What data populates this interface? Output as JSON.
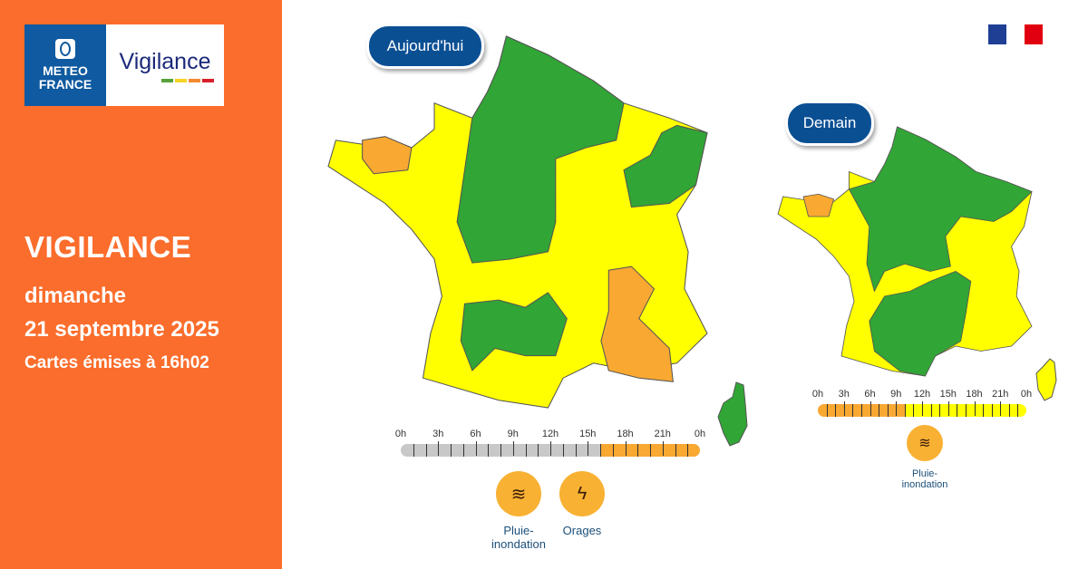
{
  "logo": {
    "brand_line1": "METEO",
    "brand_line2": "FRANCE",
    "product": "Vigilance",
    "bar_colors": [
      "#57a13a",
      "#f5d327",
      "#f58a33",
      "#d8202a"
    ]
  },
  "panel": {
    "title": "VIGILANCE",
    "day": "dimanche",
    "date": "21 septembre 2025",
    "issued": "Cartes émises à 16h02",
    "bg": "#fb6d2c"
  },
  "colors": {
    "green": "#31a535",
    "yellow": "#ffff00",
    "orange": "#f9a832",
    "grey": "#c8c8c8",
    "pill": "#0b4f93"
  },
  "today": {
    "label": "Aujourd'hui",
    "timeline": {
      "ticks": [
        "0h",
        "3h",
        "6h",
        "9h",
        "12h",
        "15h",
        "18h",
        "21h",
        "0h"
      ],
      "segments": [
        {
          "from": 0,
          "to": 16,
          "level": "grey"
        },
        {
          "from": 16,
          "to": 24,
          "level": "orange"
        }
      ]
    },
    "hazards": [
      {
        "icon": "rain-flood-icon",
        "label1": "Pluie-",
        "label2": "inondation"
      },
      {
        "icon": "lightning-icon",
        "label1": "Orages",
        "label2": ""
      }
    ]
  },
  "tomorrow": {
    "label": "Demain",
    "timeline": {
      "ticks": [
        "0h",
        "3h",
        "6h",
        "9h",
        "12h",
        "15h",
        "18h",
        "21h",
        "0h"
      ],
      "segments": [
        {
          "from": 0,
          "to": 10,
          "level": "orange"
        },
        {
          "from": 10,
          "to": 24,
          "level": "yellow"
        }
      ]
    },
    "hazards": [
      {
        "icon": "rain-flood-icon",
        "label1": "Pluie-",
        "label2": "inondation"
      }
    ]
  }
}
